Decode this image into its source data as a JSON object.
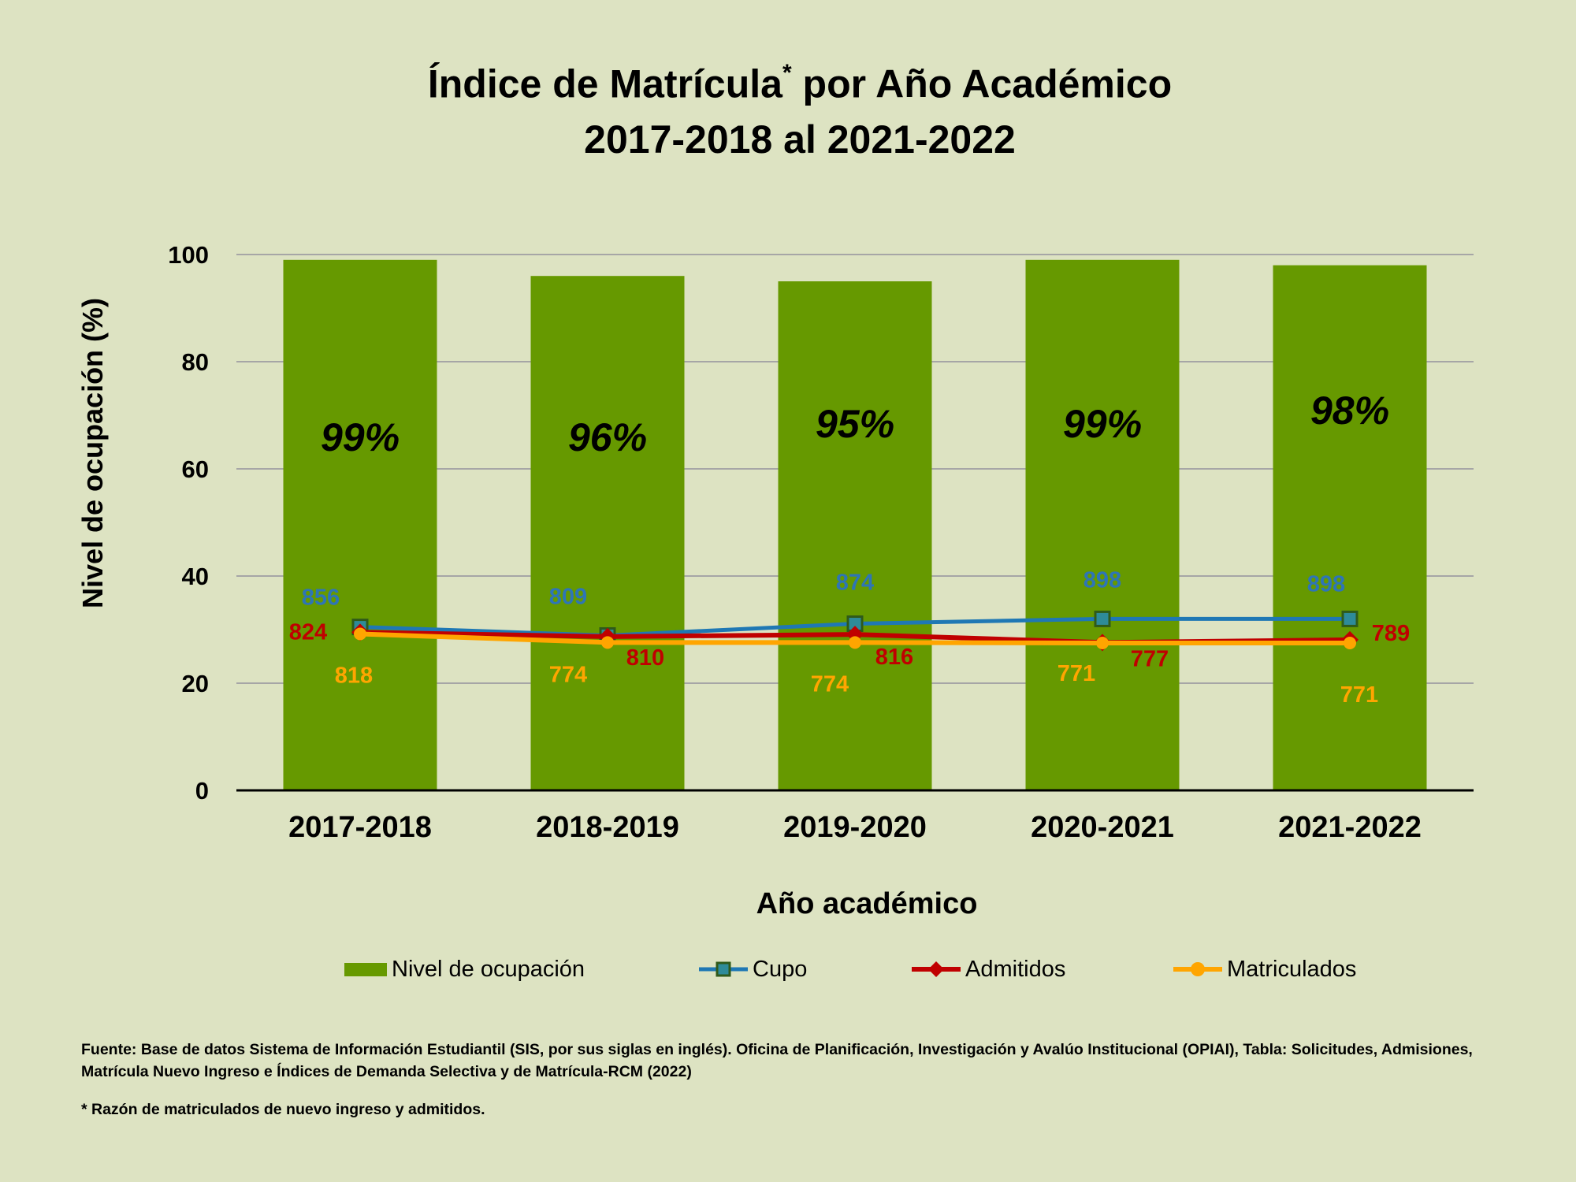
{
  "title": {
    "line1_prefix": "Índice de Matrícula",
    "line1_marker": "*",
    "line1_suffix": " por Año Académico",
    "line2": "2017-2018 al 2021-2022"
  },
  "colors": {
    "background": "#dde3c2",
    "bar": "#669900",
    "cupo": "#1f78b4",
    "cupo_marker_fill": "#2e8b99",
    "cupo_marker_border": "#2f5a1a",
    "admitidos": "#c00000",
    "matriculados": "#ffa500",
    "cupo_label": "#2e75b6",
    "admitidos_label": "#c00000",
    "matriculados_label": "#ffa500",
    "grid": "#a6a6a6"
  },
  "chart_data": {
    "type": "bar",
    "xlabel": "Año académico",
    "ylabel": "Nivel de ocupación (%)",
    "ylim": [
      0,
      100
    ],
    "yticks": [
      0,
      20,
      40,
      60,
      80,
      100
    ],
    "grid": true,
    "legend_position": "bottom",
    "categories": [
      "2017-2018",
      "2018-2019",
      "2019-2020",
      "2020-2021",
      "2021-2022"
    ],
    "bar_series": {
      "name": "Nivel de ocupación",
      "values": [
        99,
        96,
        95,
        99,
        98
      ],
      "labels": [
        "99%",
        "96%",
        "95%",
        "99%",
        "98%"
      ],
      "label_values": [
        66,
        66,
        68.5,
        68.5,
        71
      ]
    },
    "line_series": [
      {
        "name": "Cupo",
        "counts": [
          856,
          809,
          874,
          898,
          898
        ],
        "y_positions": [
          30.5,
          28.9,
          31.1,
          32.0,
          32.0
        ],
        "labels": [
          "856",
          "809",
          "874",
          "898",
          "898"
        ]
      },
      {
        "name": "Admitidos",
        "counts": [
          824,
          810,
          816,
          777,
          789
        ],
        "y_positions": [
          29.5,
          28.7,
          29.1,
          27.6,
          28.1
        ],
        "labels": [
          "824",
          "810",
          "816",
          "777",
          "789"
        ]
      },
      {
        "name": "Matriculados",
        "counts": [
          818,
          774,
          774,
          771,
          771
        ],
        "y_positions": [
          29.2,
          27.6,
          27.6,
          27.5,
          27.5
        ],
        "labels": [
          "818",
          "774",
          "774",
          "771",
          "771"
        ]
      }
    ]
  },
  "legend": {
    "bar": "Nivel de ocupación",
    "cupo": "Cupo",
    "admitidos": "Admitidos",
    "matriculados": "Matriculados"
  },
  "footer": {
    "source": "Fuente: Base de datos Sistema de Información Estudiantil (SIS, por sus siglas en inglés). Oficina de Planificación, Investigación y Avalúo Institucional (OPIAI), Tabla: Solicitudes, Admisiones, Matrícula Nuevo Ingreso e Índices de Demanda Selectiva y de Matrícula-RCM (2022)",
    "note": "* Razón de matriculados de nuevo ingreso y admitidos."
  }
}
